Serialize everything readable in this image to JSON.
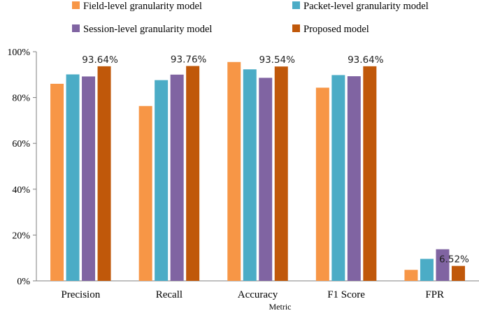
{
  "chart_data": {
    "type": "bar",
    "title": "",
    "xlabel": "Metric",
    "ylabel": "",
    "ylim": [
      0,
      100
    ],
    "yticks": [
      "0%",
      "20%",
      "40%",
      "60%",
      "80%",
      "100%"
    ],
    "categories": [
      "Precision",
      "Recall",
      "Accuracy",
      "F1 Score",
      "FPR"
    ],
    "series": [
      {
        "name": "Field-level granularity model",
        "color": "#F79646",
        "values": [
          86.0,
          76.3,
          95.5,
          84.3,
          4.8
        ]
      },
      {
        "name": "Packet-level granularity model",
        "color": "#4BACC6",
        "values": [
          90.1,
          87.6,
          92.3,
          89.8,
          9.6
        ]
      },
      {
        "name": "Session-level granularity model",
        "color": "#8064A2",
        "values": [
          89.2,
          90.0,
          88.6,
          89.3,
          13.8
        ]
      },
      {
        "name": "Proposed model",
        "color": "#C0580A",
        "values": [
          93.64,
          93.76,
          93.54,
          93.64,
          6.52
        ]
      }
    ],
    "data_labels": [
      {
        "category": "Precision",
        "series": "Proposed model",
        "text": "93.64%"
      },
      {
        "category": "Recall",
        "series": "Proposed model",
        "text": "93.76%"
      },
      {
        "category": "Accuracy",
        "series": "Proposed model",
        "text": "93.54%"
      },
      {
        "category": "F1 Score",
        "series": "Proposed model",
        "text": "93.64%"
      },
      {
        "category": "FPR",
        "series": "Proposed model",
        "text": "6.52%"
      }
    ],
    "legend_position": "top",
    "grid": false
  }
}
